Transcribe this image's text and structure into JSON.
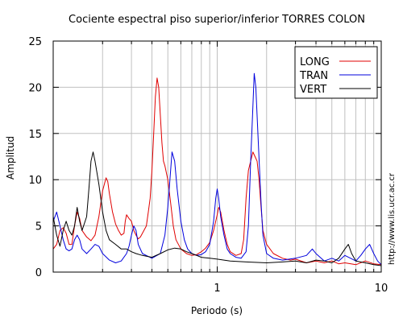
{
  "chart_data": {
    "type": "line",
    "title": "Cociente espectral piso superior/inferior  TORRES COLON",
    "xlabel": "Periodo (s)",
    "ylabel": "Amplitud",
    "credit": "http://www.lis.ucr.ac.cr",
    "x_scale": "log",
    "xlim": [
      0.1,
      10
    ],
    "ylim": [
      0,
      25
    ],
    "x_ticks": [
      1,
      10
    ],
    "x_tick_labels": [
      "1",
      "10"
    ],
    "y_ticks": [
      0,
      5,
      10,
      15,
      20,
      25
    ],
    "y_tick_labels": [
      "0",
      "5",
      "10",
      "15",
      "20",
      "25"
    ],
    "grid": true,
    "legend_position": "top-right",
    "series": [
      {
        "name": "LONG",
        "color": "#e00000",
        "points": [
          [
            0.1,
            2.5
          ],
          [
            0.105,
            3.0
          ],
          [
            0.11,
            4.5
          ],
          [
            0.115,
            4.8
          ],
          [
            0.12,
            4.2
          ],
          [
            0.125,
            3.0
          ],
          [
            0.13,
            3.0
          ],
          [
            0.135,
            5.0
          ],
          [
            0.14,
            6.5
          ],
          [
            0.145,
            5.8
          ],
          [
            0.15,
            4.5
          ],
          [
            0.16,
            3.8
          ],
          [
            0.17,
            3.4
          ],
          [
            0.18,
            4.0
          ],
          [
            0.19,
            6.0
          ],
          [
            0.2,
            8.8
          ],
          [
            0.21,
            10.2
          ],
          [
            0.215,
            9.8
          ],
          [
            0.22,
            8.5
          ],
          [
            0.23,
            6.5
          ],
          [
            0.24,
            5.2
          ],
          [
            0.25,
            4.5
          ],
          [
            0.26,
            4.0
          ],
          [
            0.27,
            4.2
          ],
          [
            0.275,
            5.5
          ],
          [
            0.28,
            6.2
          ],
          [
            0.29,
            5.8
          ],
          [
            0.3,
            5.5
          ],
          [
            0.31,
            4.5
          ],
          [
            0.32,
            4.0
          ],
          [
            0.33,
            3.6
          ],
          [
            0.34,
            3.8
          ],
          [
            0.35,
            4.2
          ],
          [
            0.37,
            5.0
          ],
          [
            0.38,
            6.5
          ],
          [
            0.39,
            8.0
          ],
          [
            0.4,
            11.0
          ],
          [
            0.41,
            15.0
          ],
          [
            0.42,
            19.0
          ],
          [
            0.43,
            21.0
          ],
          [
            0.44,
            20.0
          ],
          [
            0.45,
            17.0
          ],
          [
            0.46,
            14.0
          ],
          [
            0.47,
            12.0
          ],
          [
            0.48,
            11.5
          ],
          [
            0.5,
            10.0
          ],
          [
            0.52,
            7.5
          ],
          [
            0.54,
            5.0
          ],
          [
            0.56,
            3.5
          ],
          [
            0.6,
            2.5
          ],
          [
            0.65,
            2.0
          ],
          [
            0.7,
            1.8
          ],
          [
            0.75,
            1.9
          ],
          [
            0.8,
            2.2
          ],
          [
            0.85,
            2.6
          ],
          [
            0.9,
            3.2
          ],
          [
            0.95,
            4.5
          ],
          [
            1.0,
            6.2
          ],
          [
            1.02,
            7.0
          ],
          [
            1.05,
            6.5
          ],
          [
            1.1,
            4.5
          ],
          [
            1.15,
            3.0
          ],
          [
            1.2,
            2.2
          ],
          [
            1.3,
            1.8
          ],
          [
            1.4,
            2.0
          ],
          [
            1.45,
            3.5
          ],
          [
            1.5,
            8.0
          ],
          [
            1.55,
            11.0
          ],
          [
            1.6,
            12.0
          ],
          [
            1.65,
            13.0
          ],
          [
            1.7,
            12.5
          ],
          [
            1.75,
            12.0
          ],
          [
            1.8,
            10.0
          ],
          [
            1.85,
            7.0
          ],
          [
            1.9,
            4.5
          ],
          [
            2.0,
            3.0
          ],
          [
            2.2,
            2.0
          ],
          [
            2.5,
            1.5
          ],
          [
            2.8,
            1.3
          ],
          [
            3.0,
            1.4
          ],
          [
            3.5,
            1.0
          ],
          [
            4.0,
            1.2
          ],
          [
            4.5,
            1.0
          ],
          [
            5.0,
            1.2
          ],
          [
            5.5,
            0.9
          ],
          [
            6.0,
            1.0
          ],
          [
            7.0,
            0.8
          ],
          [
            8.0,
            1.2
          ],
          [
            9.0,
            0.9
          ],
          [
            10.0,
            0.8
          ]
        ]
      },
      {
        "name": "TRAN",
        "color": "#0000dd",
        "points": [
          [
            0.1,
            5.5
          ],
          [
            0.105,
            6.5
          ],
          [
            0.11,
            5.0
          ],
          [
            0.115,
            3.5
          ],
          [
            0.12,
            2.5
          ],
          [
            0.125,
            2.3
          ],
          [
            0.13,
            2.5
          ],
          [
            0.135,
            3.5
          ],
          [
            0.14,
            4.0
          ],
          [
            0.145,
            3.5
          ],
          [
            0.15,
            2.5
          ],
          [
            0.16,
            2.0
          ],
          [
            0.17,
            2.5
          ],
          [
            0.18,
            3.0
          ],
          [
            0.19,
            2.8
          ],
          [
            0.2,
            2.0
          ],
          [
            0.22,
            1.3
          ],
          [
            0.24,
            1.0
          ],
          [
            0.26,
            1.2
          ],
          [
            0.28,
            2.0
          ],
          [
            0.29,
            2.8
          ],
          [
            0.3,
            4.0
          ],
          [
            0.31,
            5.0
          ],
          [
            0.32,
            4.5
          ],
          [
            0.33,
            3.0
          ],
          [
            0.35,
            2.0
          ],
          [
            0.4,
            1.5
          ],
          [
            0.45,
            2.0
          ],
          [
            0.48,
            4.0
          ],
          [
            0.5,
            7.0
          ],
          [
            0.52,
            11.0
          ],
          [
            0.53,
            13.0
          ],
          [
            0.55,
            12.0
          ],
          [
            0.57,
            9.0
          ],
          [
            0.6,
            5.5
          ],
          [
            0.63,
            3.5
          ],
          [
            0.66,
            2.5
          ],
          [
            0.7,
            2.0
          ],
          [
            0.75,
            1.8
          ],
          [
            0.8,
            1.9
          ],
          [
            0.85,
            2.2
          ],
          [
            0.9,
            3.0
          ],
          [
            0.95,
            5.5
          ],
          [
            0.98,
            8.0
          ],
          [
            1.0,
            9.0
          ],
          [
            1.02,
            8.0
          ],
          [
            1.05,
            6.0
          ],
          [
            1.1,
            4.0
          ],
          [
            1.15,
            2.5
          ],
          [
            1.2,
            2.0
          ],
          [
            1.3,
            1.6
          ],
          [
            1.4,
            1.5
          ],
          [
            1.5,
            2.2
          ],
          [
            1.55,
            5.0
          ],
          [
            1.6,
            12.0
          ],
          [
            1.65,
            18.0
          ],
          [
            1.68,
            21.5
          ],
          [
            1.72,
            20.0
          ],
          [
            1.78,
            14.0
          ],
          [
            1.85,
            7.5
          ],
          [
            1.9,
            4.0
          ],
          [
            2.0,
            2.0
          ],
          [
            2.2,
            1.5
          ],
          [
            2.5,
            1.3
          ],
          [
            3.0,
            1.5
          ],
          [
            3.5,
            1.8
          ],
          [
            3.8,
            2.5
          ],
          [
            4.0,
            2.0
          ],
          [
            4.5,
            1.2
          ],
          [
            5.0,
            1.5
          ],
          [
            5.5,
            1.2
          ],
          [
            6.0,
            1.8
          ],
          [
            6.5,
            1.5
          ],
          [
            7.0,
            1.2
          ],
          [
            7.5,
            1.8
          ],
          [
            8.0,
            2.5
          ],
          [
            8.5,
            3.0
          ],
          [
            9.0,
            2.0
          ],
          [
            9.5,
            1.2
          ],
          [
            10.0,
            0.8
          ]
        ]
      },
      {
        "name": "VERT",
        "color": "#000000",
        "points": [
          [
            0.1,
            6.0
          ],
          [
            0.105,
            4.0
          ],
          [
            0.11,
            2.8
          ],
          [
            0.115,
            4.5
          ],
          [
            0.12,
            5.5
          ],
          [
            0.125,
            4.5
          ],
          [
            0.13,
            4.0
          ],
          [
            0.135,
            5.0
          ],
          [
            0.14,
            7.0
          ],
          [
            0.145,
            5.5
          ],
          [
            0.15,
            4.5
          ],
          [
            0.16,
            6.0
          ],
          [
            0.165,
            9.0
          ],
          [
            0.17,
            12.0
          ],
          [
            0.175,
            13.0
          ],
          [
            0.18,
            12.0
          ],
          [
            0.19,
            9.5
          ],
          [
            0.2,
            6.5
          ],
          [
            0.21,
            4.5
          ],
          [
            0.22,
            3.5
          ],
          [
            0.24,
            3.0
          ],
          [
            0.26,
            2.5
          ],
          [
            0.28,
            2.5
          ],
          [
            0.3,
            2.2
          ],
          [
            0.32,
            2.0
          ],
          [
            0.35,
            1.8
          ],
          [
            0.4,
            1.6
          ],
          [
            0.45,
            2.0
          ],
          [
            0.5,
            2.4
          ],
          [
            0.55,
            2.6
          ],
          [
            0.6,
            2.5
          ],
          [
            0.65,
            2.2
          ],
          [
            0.7,
            2.0
          ],
          [
            0.75,
            1.8
          ],
          [
            0.8,
            1.6
          ],
          [
            0.9,
            1.5
          ],
          [
            1.0,
            1.4
          ],
          [
            1.1,
            1.3
          ],
          [
            1.2,
            1.2
          ],
          [
            1.5,
            1.1
          ],
          [
            2.0,
            1.0
          ],
          [
            2.5,
            1.1
          ],
          [
            3.0,
            1.2
          ],
          [
            3.5,
            1.0
          ],
          [
            4.0,
            1.3
          ],
          [
            4.5,
            1.2
          ],
          [
            5.0,
            1.0
          ],
          [
            5.5,
            1.5
          ],
          [
            6.0,
            2.5
          ],
          [
            6.3,
            3.0
          ],
          [
            6.6,
            2.0
          ],
          [
            7.0,
            1.2
          ],
          [
            8.0,
            1.0
          ],
          [
            9.0,
            0.8
          ],
          [
            10.0,
            0.7
          ]
        ]
      }
    ]
  }
}
